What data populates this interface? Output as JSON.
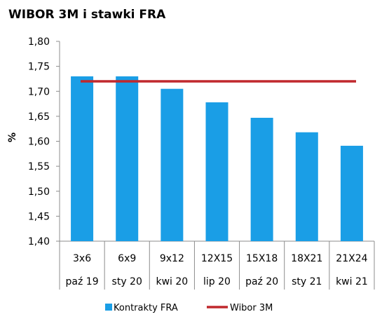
{
  "chart_data": {
    "type": "bar",
    "title": "WIBOR 3M i stawki FRA",
    "ylabel": "%",
    "xlabel": "",
    "ylim": [
      1.4,
      1.8
    ],
    "yticks": [
      "1,40",
      "1,45",
      "1,50",
      "1,55",
      "1,60",
      "1,65",
      "1,70",
      "1,75",
      "1,80"
    ],
    "ytick_values": [
      1.4,
      1.45,
      1.5,
      1.55,
      1.6,
      1.65,
      1.7,
      1.75,
      1.8
    ],
    "categories": [
      "3x6",
      "6x9",
      "9x12",
      "12X15",
      "15X18",
      "18X21",
      "21X24"
    ],
    "category_dates": [
      "paź 19",
      "sty 20",
      "kwi 20",
      "lip 20",
      "paź 20",
      "sty 21",
      "kwi 21"
    ],
    "series": [
      {
        "name": "Kontrakty FRA",
        "type": "bar",
        "color": "#1a9ee6",
        "values": [
          1.73,
          1.73,
          1.705,
          1.678,
          1.647,
          1.618,
          1.591
        ]
      },
      {
        "name": "Wibor 3M",
        "type": "line",
        "color": "#c0282d",
        "values": [
          1.72,
          1.72,
          1.72,
          1.72,
          1.72,
          1.72,
          1.72
        ]
      }
    ],
    "grid": false,
    "legend_position": "bottom"
  }
}
